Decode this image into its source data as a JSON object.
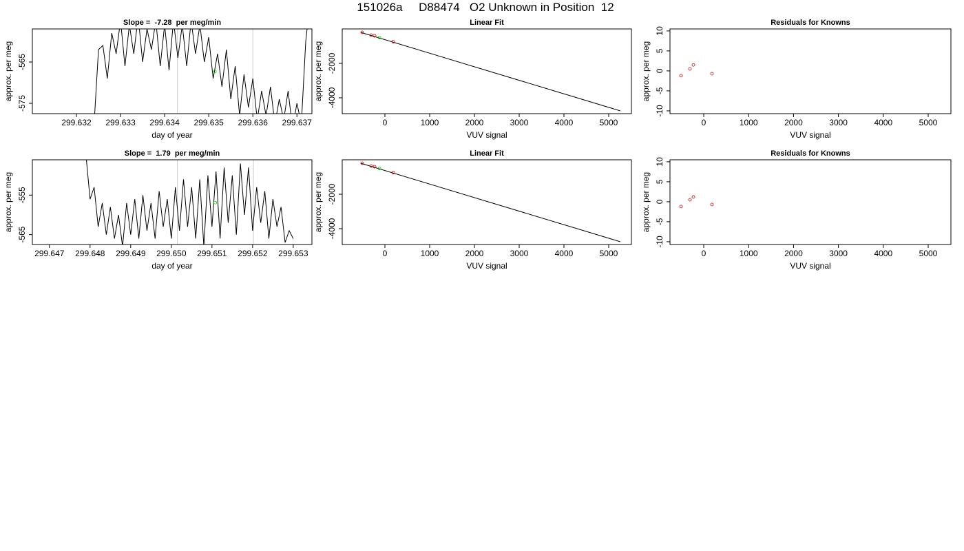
{
  "title": "151026a     D88474   O2 Unknown in Position  12",
  "chart_data": [
    {
      "type": "line",
      "title": "Slope =  -7.28  per meg/min",
      "x_label": "day of year",
      "y_label": "approx. per meg",
      "xlim": [
        299.631,
        299.63734
      ],
      "ylim": [
        -577.5,
        -557
      ],
      "xticks": [
        {
          "value": 299.632,
          "label": "299.632"
        },
        {
          "value": 299.633,
          "label": "299.633"
        },
        {
          "value": 299.634,
          "label": "299.634"
        },
        {
          "value": 299.635,
          "label": "299.635"
        },
        {
          "value": 299.636,
          "label": "299.636"
        },
        {
          "value": 299.637,
          "label": "299.637"
        }
      ],
      "yticks": [
        -565,
        -575
      ],
      "vlines": [
        299.63429,
        299.636
      ],
      "vline_color": "#cccccc",
      "series": [
        {
          "mode": "line",
          "color": "#000000",
          "x": [
            299.6324,
            299.6325,
            299.6326,
            299.6327,
            299.6328,
            299.6329,
            299.633,
            299.6331,
            299.6332,
            299.6333,
            299.6334,
            299.6335,
            299.6336,
            299.6337,
            299.6338,
            299.6339,
            299.634,
            299.6341,
            299.6342,
            299.6343,
            299.6344,
            299.6345,
            299.6346,
            299.6347,
            299.6348,
            299.6349,
            299.635,
            299.6351,
            299.6352,
            299.6353,
            299.6354,
            299.6355,
            299.6356,
            299.6357,
            299.6358,
            299.6359,
            299.636,
            299.6361,
            299.6362,
            299.6363,
            299.6364,
            299.6365,
            299.6366,
            299.6367,
            299.6368,
            299.6369,
            299.637,
            299.6371,
            299.6372,
            299.6373
          ],
          "values": [
            -580,
            -562,
            -561,
            -569,
            -558,
            -563,
            -555,
            -566,
            -556,
            -563,
            -554,
            -565,
            -557,
            -562,
            -555,
            -566,
            -556,
            -567,
            -555,
            -564,
            -556,
            -566,
            -555,
            -563,
            -556,
            -565,
            -559,
            -569,
            -563,
            -571,
            -562,
            -574,
            -566,
            -578,
            -568,
            -576,
            -569,
            -579,
            -572,
            -578,
            -571,
            -580,
            -574,
            -579,
            -572,
            -581,
            -575,
            -580,
            -560,
            -550
          ]
        },
        {
          "mode": "points",
          "color": "#00cc00",
          "x": [
            299.63514
          ],
          "values": [
            -567.3
          ]
        }
      ]
    },
    {
      "type": "scatter",
      "title": "Linear Fit",
      "x_label": "VUV signal",
      "y_label": "approx. per meg",
      "xlim": [
        -954,
        5508
      ],
      "ylim": [
        -4920,
        0
      ],
      "xticks": [
        0,
        1000,
        2000,
        3000,
        4000,
        5000
      ],
      "yticks": [
        -2000,
        -4000
      ],
      "series": [
        {
          "mode": "line",
          "color": "#000000",
          "x": [
            -540,
            5260
          ],
          "values": [
            -200,
            -4760
          ]
        },
        {
          "mode": "points",
          "color": "#cc0000",
          "x": [
            -508,
            -308,
            -231,
            185
          ],
          "values": [
            -200,
            -360,
            -400,
            -740
          ]
        },
        {
          "mode": "points",
          "color": "#00cc00",
          "x": [
            -123
          ],
          "values": [
            -500
          ]
        }
      ]
    },
    {
      "type": "scatter",
      "title": "Residuals for Knowns",
      "x_label": "VUV signal",
      "y_label": "approx. per meg",
      "xlim": [
        -752,
        5506
      ],
      "ylim": [
        -10.7,
        10.5
      ],
      "xticks": [
        0,
        1000,
        2000,
        3000,
        4000,
        5000
      ],
      "yticks": [
        10,
        5,
        0,
        -5,
        -10
      ],
      "series": [
        {
          "mode": "points",
          "color": "#cc0000",
          "x": [
            -506,
            -307,
            -230,
            184
          ],
          "values": [
            -1.2,
            0.5,
            1.5,
            -0.7
          ]
        }
      ]
    },
    {
      "type": "line",
      "title": "Slope =  1.79  per meg/min",
      "x_label": "day of year",
      "y_label": "approx. per meg",
      "xlim": [
        299.64658,
        299.65346
      ],
      "ylim": [
        -567.5,
        -546.05
      ],
      "xticks": [
        {
          "value": 299.647,
          "label": "299.647"
        },
        {
          "value": 299.648,
          "label": "299.648"
        },
        {
          "value": 299.649,
          "label": "299.649"
        },
        {
          "value": 299.65,
          "label": "299.650"
        },
        {
          "value": 299.651,
          "label": "299.651"
        },
        {
          "value": 299.652,
          "label": "299.652"
        },
        {
          "value": 299.653,
          "label": "299.653"
        }
      ],
      "yticks": [
        -555,
        -565
      ],
      "vlines": [
        299.65015,
        299.65202
      ],
      "vline_color": "#cccccc",
      "series": [
        {
          "mode": "line",
          "color": "#000000",
          "x": [
            299.6479,
            299.648,
            299.6481,
            299.6482,
            299.6483,
            299.6484,
            299.6485,
            299.6486,
            299.6487,
            299.6488,
            299.6489,
            299.649,
            299.6491,
            299.6492,
            299.6493,
            299.6494,
            299.6495,
            299.6496,
            299.6497,
            299.6498,
            299.6499,
            299.65,
            299.6501,
            299.6502,
            299.6503,
            299.6504,
            299.6505,
            299.6506,
            299.6507,
            299.6508,
            299.6509,
            299.651,
            299.6511,
            299.6512,
            299.6513,
            299.6514,
            299.6515,
            299.6516,
            299.6517,
            299.6518,
            299.6519,
            299.652,
            299.6521,
            299.6522,
            299.6523,
            299.6524,
            299.6525,
            299.6526,
            299.6527,
            299.6528,
            299.6529,
            299.653
          ],
          "values": [
            -545,
            -556,
            -553,
            -563,
            -557,
            -565,
            -558,
            -566,
            -560,
            -568,
            -557,
            -565,
            -556,
            -566,
            -555,
            -564,
            -557,
            -566,
            -554,
            -563,
            -556,
            -566,
            -553,
            -564,
            -551,
            -563,
            -553,
            -566,
            -551,
            -568,
            -550,
            -563,
            -549,
            -566,
            -548,
            -562,
            -550,
            -565,
            -547,
            -560,
            -548,
            -564,
            -553,
            -562,
            -554,
            -566,
            -556,
            -563,
            -558,
            -567,
            -564,
            -566
          ]
        },
        {
          "mode": "points",
          "color": "#00cc00",
          "x": [
            299.65108
          ],
          "values": [
            -556.9
          ]
        }
      ]
    },
    {
      "type": "scatter",
      "title": "Linear Fit",
      "x_label": "VUV signal",
      "y_label": "approx. per meg",
      "xlim": [
        -954,
        5508
      ],
      "ylim": [
        -4920,
        0
      ],
      "xticks": [
        0,
        1000,
        2000,
        3000,
        4000,
        5000
      ],
      "yticks": [
        -2000,
        -4000
      ],
      "series": [
        {
          "mode": "line",
          "color": "#000000",
          "x": [
            -540,
            5260
          ],
          "values": [
            -200,
            -4760
          ]
        },
        {
          "mode": "points",
          "color": "#cc0000",
          "x": [
            -508,
            -308,
            -231,
            185
          ],
          "values": [
            -200,
            -360,
            -400,
            -740
          ]
        },
        {
          "mode": "points",
          "color": "#00cc00",
          "x": [
            -123
          ],
          "values": [
            -500
          ]
        }
      ]
    },
    {
      "type": "scatter",
      "title": "Residuals for Knowns",
      "x_label": "VUV signal",
      "y_label": "approx. per meg",
      "xlim": [
        -752,
        5506
      ],
      "ylim": [
        -10.7,
        10.5
      ],
      "xticks": [
        0,
        1000,
        2000,
        3000,
        4000,
        5000
      ],
      "yticks": [
        10,
        5,
        0,
        -5,
        -10
      ],
      "series": [
        {
          "mode": "points",
          "color": "#cc0000",
          "x": [
            -506,
            -307,
            -230,
            184
          ],
          "values": [
            -1.2,
            0.5,
            1.2,
            -0.7
          ]
        }
      ]
    }
  ]
}
